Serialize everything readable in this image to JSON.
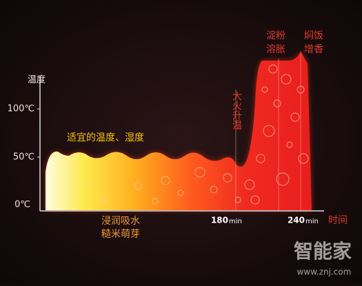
{
  "axis": {
    "y_label": "温度",
    "y_ticks": [
      "100℃",
      "50℃",
      "0℃"
    ],
    "x_ticks": [
      {
        "number": "180",
        "unit": "min"
      },
      {
        "number": "240",
        "unit": "min"
      }
    ],
    "x_label": "时间"
  },
  "annotations": {
    "ideal": "适宜的温度、湿度",
    "heat": "大火升温",
    "starch": [
      "淀粉",
      "溶胀"
    ],
    "simmer": [
      "焖饭",
      "增香"
    ],
    "soak": [
      "浸润吸水",
      "糙米萌芽"
    ]
  },
  "watermark": {
    "brand": "智能家",
    "url": "www.znj.com"
  }
}
